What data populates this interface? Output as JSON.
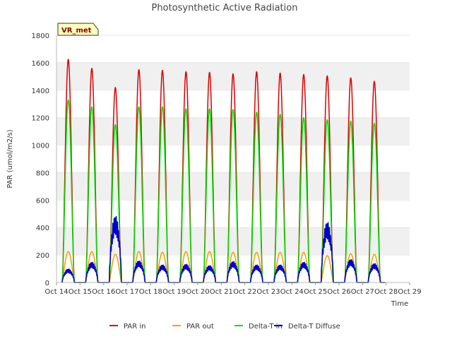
{
  "chart_data": {
    "type": "line",
    "title": "Photosynthetic Active Radiation",
    "xlabel": "Time",
    "ylabel": "PAR (umol/m2/s)",
    "badge": "VR_met",
    "ylim": [
      0,
      1800
    ],
    "yticks": [
      0,
      200,
      400,
      600,
      800,
      1000,
      1200,
      1400,
      1600,
      1800
    ],
    "xlim": [
      14,
      29
    ],
    "xticks": [
      {
        "value": 14,
        "label": "Oct 14"
      },
      {
        "value": 15,
        "label": "Oct 15"
      },
      {
        "value": 16,
        "label": "Oct 16"
      },
      {
        "value": 17,
        "label": "Oct 17"
      },
      {
        "value": 18,
        "label": "Oct 18"
      },
      {
        "value": 19,
        "label": "Oct 19"
      },
      {
        "value": 20,
        "label": "Oct 20"
      },
      {
        "value": 21,
        "label": "Oct 21"
      },
      {
        "value": 22,
        "label": "Oct 22"
      },
      {
        "value": 23,
        "label": "Oct 23"
      },
      {
        "value": 24,
        "label": "Oct 24"
      },
      {
        "value": 25,
        "label": "Oct 25"
      },
      {
        "value": 26,
        "label": "Oct 26"
      },
      {
        "value": 27,
        "label": "Oct 27"
      },
      {
        "value": 28,
        "label": "Oct 28"
      },
      {
        "value": 29,
        "label": "Oct 29"
      }
    ],
    "grid": "horizontal bands",
    "legend_position": "bottom",
    "day_centers": [
      14.5,
      15.5,
      16.5,
      17.5,
      18.5,
      19.5,
      20.5,
      21.5,
      22.5,
      23.5,
      24.5,
      25.5,
      26.5,
      27.5
    ],
    "series": [
      {
        "name": "PAR in",
        "color": "#dd0000",
        "daily_peaks": [
          1625,
          1560,
          1420,
          1550,
          1545,
          1535,
          1530,
          1520,
          1535,
          1525,
          1515,
          1505,
          1490,
          1465
        ]
      },
      {
        "name": "PAR out",
        "color": "#ff9900",
        "daily_peaks": [
          225,
          225,
          205,
          225,
          220,
          225,
          225,
          220,
          220,
          220,
          220,
          195,
          210,
          205
        ]
      },
      {
        "name": "Delta-T in",
        "color": "#00dd00",
        "daily_peaks": [
          1330,
          1280,
          1150,
          1280,
          1280,
          1265,
          1265,
          1260,
          1240,
          1225,
          1200,
          1185,
          1175,
          1160
        ]
      },
      {
        "name": "Delta-T Diffuse",
        "color": "#0000cc",
        "daily_peaks": [
          100,
          150,
          490,
          160,
          130,
          135,
          125,
          155,
          130,
          130,
          150,
          445,
          170,
          140
        ]
      }
    ]
  }
}
